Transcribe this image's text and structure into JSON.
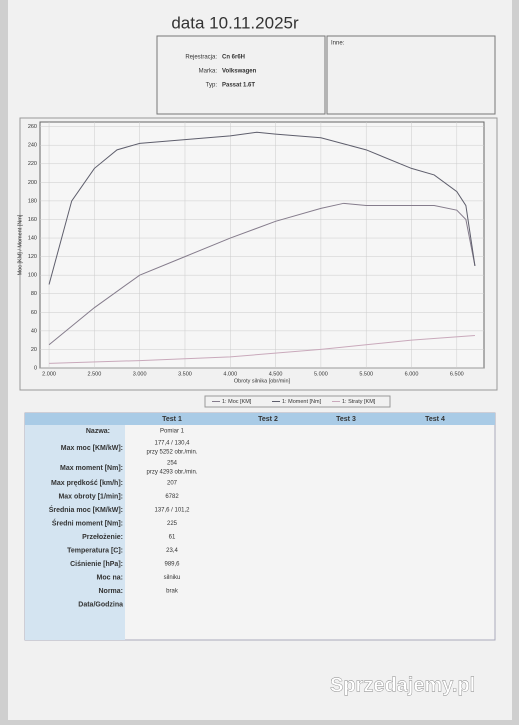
{
  "header": {
    "title": "data 10.11.2025r"
  },
  "info": {
    "fields": [
      [
        "Rejestracja:",
        "Cn 6r6H"
      ],
      [
        "Marka:",
        "Volkswagen"
      ],
      [
        "Typ:",
        "Passat 1.6T"
      ]
    ],
    "other": "Inne:"
  },
  "chart_data": {
    "type": "line",
    "ylabel": "Moc [KM] / Moment [Nm]",
    "xlabel": "Obroty silnika [obr/min]",
    "xlim": [
      1900,
      6800
    ],
    "ylim": [
      0,
      265
    ],
    "xticks": [
      {
        "value": 2000,
        "label": "2.000"
      },
      {
        "value": 2500,
        "label": "2.500"
      },
      {
        "value": 3000,
        "label": "3.000"
      },
      {
        "value": 3500,
        "label": "3.500"
      },
      {
        "value": 4000,
        "label": "4.000"
      },
      {
        "value": 4500,
        "label": "4.500"
      },
      {
        "value": 5000,
        "label": "5.000"
      },
      {
        "value": 5500,
        "label": "5.500"
      },
      {
        "value": 6000,
        "label": "6.000"
      },
      {
        "value": 6500,
        "label": "6.500"
      }
    ],
    "yticks": [
      0,
      20,
      40,
      60,
      80,
      100,
      120,
      140,
      160,
      180,
      200,
      220,
      240,
      260
    ],
    "grid": true,
    "series": [
      {
        "name": "1: Moc [KM]",
        "color": "#857c8c",
        "x": [
          2000,
          2500,
          3000,
          3500,
          4000,
          4500,
          5000,
          5252,
          5500,
          6000,
          6250,
          6500,
          6600,
          6700
        ],
        "values": [
          25,
          65,
          100,
          120,
          140,
          158,
          172,
          177.4,
          175,
          175,
          175,
          170,
          160,
          110
        ]
      },
      {
        "name": "1: Moment [Nm]",
        "color": "#5e5e6c",
        "x": [
          2000,
          2250,
          2500,
          2750,
          3000,
          3500,
          4000,
          4293,
          4500,
          5000,
          5500,
          6000,
          6250,
          6500,
          6600,
          6700
        ],
        "values": [
          90,
          180,
          215,
          235,
          242,
          246,
          250,
          254,
          252,
          248,
          235,
          215,
          208,
          190,
          175,
          110
        ]
      },
      {
        "name": "1: Straty [KM]",
        "color": "#c9a9bb",
        "x": [
          2000,
          3000,
          4000,
          5000,
          6000,
          6700
        ],
        "values": [
          5,
          8,
          12,
          20,
          30,
          35
        ]
      }
    ]
  },
  "table": {
    "headers": [
      "Nazwa:",
      "Test 1",
      "Test 2",
      "Test 3",
      "Test 4"
    ],
    "rows": [
      [
        "Nazwa:",
        "Pomiar 1"
      ],
      [
        "Max moc [KM/kW]:",
        "177,4 / 130,4",
        "przy 5252 obr./min."
      ],
      [
        "Max moment [Nm]:",
        "254",
        "przy 4293 obr./min."
      ],
      [
        "Max prędkość [km/h]:",
        "207"
      ],
      [
        "Max obroty [1/min]:",
        "6782"
      ],
      [
        "Średnia moc [KM/kW]:",
        "137,6 / 101,2"
      ],
      [
        "Średni moment [Nm]:",
        "225"
      ],
      [
        "Przełożenie:",
        "61"
      ],
      [
        "Temperatura [C]:",
        "23,4"
      ],
      [
        "Ciśnienie [hPa]:",
        "989,6"
      ],
      [
        "Moc na:",
        "silniku"
      ],
      [
        "Norma:",
        "brak"
      ],
      [
        "Data/Godzina"
      ]
    ]
  },
  "watermark": "Sprzedajemy.pl"
}
